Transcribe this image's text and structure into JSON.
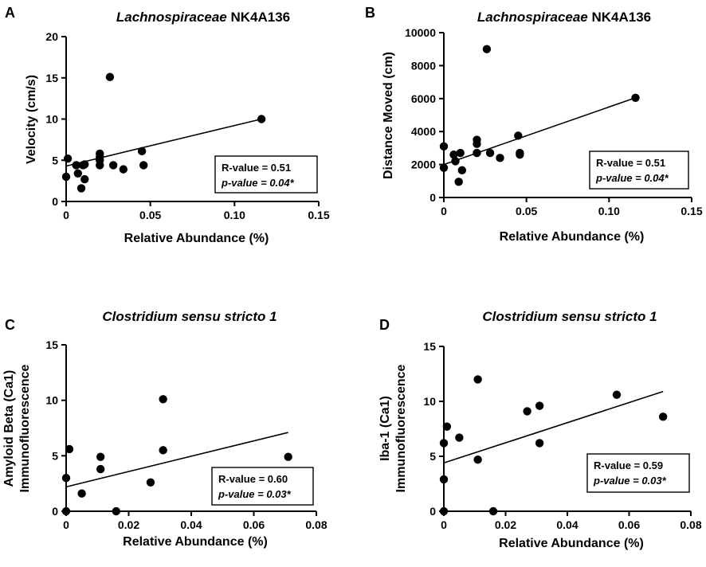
{
  "chart_data": [
    {
      "type": "scatter",
      "panel": "A",
      "title_italic": "Lachnospiraceae",
      "title_rest": " NK4A136",
      "xlabel": "Relative Abundance (%)",
      "ylabel": [
        "Velocity (cm/s)"
      ],
      "xlim": [
        0,
        0.15
      ],
      "ylim": [
        0,
        20
      ],
      "xticks": [
        0,
        0.05,
        0.1,
        0.15
      ],
      "xtick_labels": [
        "0",
        "0.05",
        "0.10",
        "0.15"
      ],
      "yticks": [
        0,
        5,
        10,
        15,
        20
      ],
      "ytick_labels": [
        "0",
        "5",
        "10",
        "15",
        "20"
      ],
      "points": [
        [
          0.0,
          3.0
        ],
        [
          0.001,
          5.2
        ],
        [
          0.006,
          4.4
        ],
        [
          0.007,
          3.4
        ],
        [
          0.009,
          1.6
        ],
        [
          0.01,
          4.4
        ],
        [
          0.011,
          2.7
        ],
        [
          0.011,
          4.5
        ],
        [
          0.02,
          5.8
        ],
        [
          0.02,
          5.4
        ],
        [
          0.02,
          5.0
        ],
        [
          0.02,
          4.4
        ],
        [
          0.026,
          15.1
        ],
        [
          0.028,
          4.4
        ],
        [
          0.034,
          3.9
        ],
        [
          0.045,
          6.1
        ],
        [
          0.046,
          4.4
        ],
        [
          0.116,
          10.0
        ]
      ],
      "fit_line": [
        [
          0.0,
          4.3
        ],
        [
          0.116,
          10.0
        ]
      ],
      "stats": {
        "r_text": "R-value = 0.51",
        "p_text": "p-value = 0.04*"
      }
    },
    {
      "type": "scatter",
      "panel": "B",
      "title_italic": "Lachnospiraceae",
      "title_rest": " NK4A136",
      "xlabel": "Relative Abundance (%)",
      "ylabel": [
        "Distance Moved  (cm)"
      ],
      "xlim": [
        0,
        0.15
      ],
      "ylim": [
        0,
        10000
      ],
      "xticks": [
        0,
        0.05,
        0.1,
        0.15
      ],
      "xtick_labels": [
        "0",
        "0.05",
        "0.10",
        "0.15"
      ],
      "yticks": [
        0,
        2000,
        4000,
        6000,
        8000,
        10000
      ],
      "ytick_labels": [
        "0",
        "2000",
        "4000",
        "6000",
        "8000",
        "10000"
      ],
      "points": [
        [
          0.0,
          1800
        ],
        [
          0.0,
          3100
        ],
        [
          0.006,
          2600
        ],
        [
          0.007,
          2200
        ],
        [
          0.009,
          950
        ],
        [
          0.01,
          2700
        ],
        [
          0.011,
          1650
        ],
        [
          0.02,
          3500
        ],
        [
          0.02,
          3250
        ],
        [
          0.02,
          2700
        ],
        [
          0.026,
          9000
        ],
        [
          0.028,
          2700
        ],
        [
          0.034,
          2400
        ],
        [
          0.045,
          3750
        ],
        [
          0.046,
          2600
        ],
        [
          0.046,
          2700
        ],
        [
          0.116,
          6050
        ]
      ],
      "fit_line": [
        [
          0.0,
          2000
        ],
        [
          0.116,
          6050
        ]
      ],
      "stats": {
        "r_text": "R-value = 0.51",
        "p_text": "p-value = 0.04*"
      }
    },
    {
      "type": "scatter",
      "panel": "C",
      "title_italic": "Clostridium sensu stricto 1",
      "title_rest": "",
      "xlabel": "Relative Abundance (%)",
      "ylabel": [
        "Amyloid Beta (Ca1)",
        "Immunofluorescence"
      ],
      "xlim": [
        0,
        0.08
      ],
      "ylim": [
        0,
        15
      ],
      "xticks": [
        0,
        0.02,
        0.04,
        0.06,
        0.08
      ],
      "xtick_labels": [
        "0",
        "0.02",
        "0.04",
        "0.06",
        "0.08"
      ],
      "yticks": [
        0,
        5,
        10,
        15
      ],
      "ytick_labels": [
        "0",
        "5",
        "10",
        "15"
      ],
      "points": [
        [
          0.0,
          0.0
        ],
        [
          0.0,
          3.0
        ],
        [
          0.001,
          5.6
        ],
        [
          0.005,
          1.6
        ],
        [
          0.011,
          4.9
        ],
        [
          0.011,
          3.8
        ],
        [
          0.016,
          0.0
        ],
        [
          0.027,
          2.6
        ],
        [
          0.031,
          5.5
        ],
        [
          0.031,
          10.1
        ],
        [
          0.071,
          4.9
        ]
      ],
      "fit_line": [
        [
          0.0,
          2.2
        ],
        [
          0.071,
          7.1
        ]
      ],
      "stats": {
        "r_text": "R-value = 0.60",
        "p_text": "p-value = 0.03*"
      }
    },
    {
      "type": "scatter",
      "panel": "D",
      "title_italic": "Clostridium sensu stricto 1",
      "title_rest": "",
      "xlabel": "Relative Abundance (%)",
      "ylabel": [
        "Iba-1 (Ca1)",
        "Immunofluorescence"
      ],
      "xlim": [
        0,
        0.08
      ],
      "ylim": [
        0,
        15
      ],
      "xticks": [
        0,
        0.02,
        0.04,
        0.06,
        0.08
      ],
      "xtick_labels": [
        "0",
        "0.02",
        "0.04",
        "0.06",
        "0.08"
      ],
      "yticks": [
        0,
        5,
        10,
        15
      ],
      "ytick_labels": [
        "0",
        "5",
        "10",
        "15"
      ],
      "points": [
        [
          0.0,
          0.0
        ],
        [
          0.0,
          2.9
        ],
        [
          0.0,
          6.2
        ],
        [
          0.001,
          7.7
        ],
        [
          0.005,
          6.7
        ],
        [
          0.011,
          12.0
        ],
        [
          0.011,
          4.7
        ],
        [
          0.016,
          0.0
        ],
        [
          0.027,
          9.1
        ],
        [
          0.031,
          9.6
        ],
        [
          0.031,
          6.2
        ],
        [
          0.056,
          10.6
        ],
        [
          0.071,
          8.6
        ]
      ],
      "fit_line": [
        [
          0.0,
          4.4
        ],
        [
          0.071,
          10.9
        ]
      ],
      "stats": {
        "r_text": "R-value = 0.59",
        "p_text": "p-value = 0.03*"
      }
    }
  ]
}
